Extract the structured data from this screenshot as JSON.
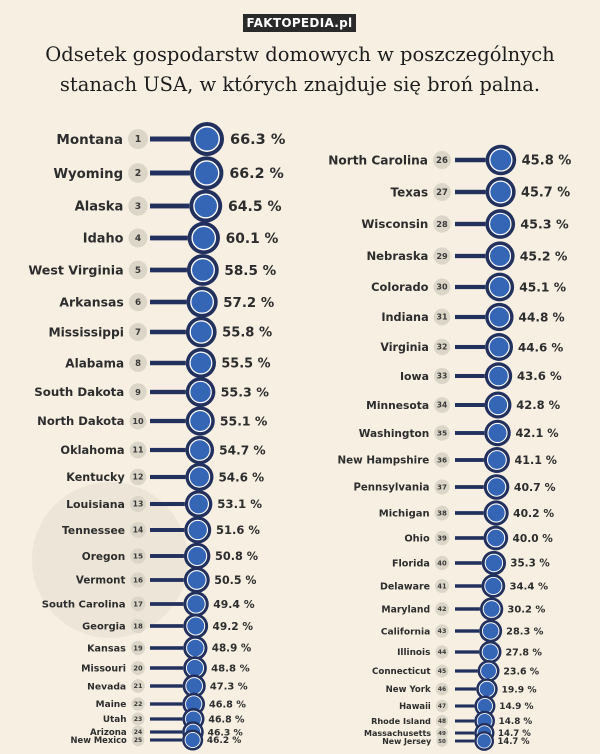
{
  "brand": "FAKTOPEDIA.pl",
  "chart_data": {
    "type": "bar",
    "title": "Odsetek gospodarstw domowych w poszczególnych stanach USA, w których znajduje się broń palna.",
    "title_lines": [
      "Odsetek gospodarstw domowych w poszczególnych",
      "stanach USA, w których znajduje się broń palna."
    ],
    "colors": {
      "bar": "#22305e",
      "rank_badge": "#dcd6c9",
      "background": "#f6efe2"
    },
    "items": [
      {
        "rank": 1,
        "state": "Montana",
        "value": 66.3,
        "label": "66.3 %"
      },
      {
        "rank": 2,
        "state": "Wyoming",
        "value": 66.2,
        "label": "66.2 %"
      },
      {
        "rank": 3,
        "state": "Alaska",
        "value": 64.5,
        "label": "64.5 %"
      },
      {
        "rank": 4,
        "state": "Idaho",
        "value": 60.1,
        "label": "60.1 %"
      },
      {
        "rank": 5,
        "state": "West Virginia",
        "value": 58.5,
        "label": "58.5 %"
      },
      {
        "rank": 6,
        "state": "Arkansas",
        "value": 57.2,
        "label": "57.2 %"
      },
      {
        "rank": 7,
        "state": "Mississippi",
        "value": 55.8,
        "label": "55.8 %"
      },
      {
        "rank": 8,
        "state": "Alabama",
        "value": 55.5,
        "label": "55.5 %"
      },
      {
        "rank": 9,
        "state": "South Dakota",
        "value": 55.3,
        "label": "55.3 %"
      },
      {
        "rank": 10,
        "state": "North Dakota",
        "value": 55.1,
        "label": "55.1 %"
      },
      {
        "rank": 11,
        "state": "Oklahoma",
        "value": 54.7,
        "label": "54.7 %"
      },
      {
        "rank": 12,
        "state": "Kentucky",
        "value": 54.6,
        "label": "54.6 %"
      },
      {
        "rank": 13,
        "state": "Louisiana",
        "value": 53.1,
        "label": "53.1 %"
      },
      {
        "rank": 14,
        "state": "Tennessee",
        "value": 51.6,
        "label": "51.6 %"
      },
      {
        "rank": 15,
        "state": "Oregon",
        "value": 50.8,
        "label": "50.8 %"
      },
      {
        "rank": 16,
        "state": "Vermont",
        "value": 50.5,
        "label": "50.5 %"
      },
      {
        "rank": 17,
        "state": "South Carolina",
        "value": 49.4,
        "label": "49.4 %"
      },
      {
        "rank": 18,
        "state": "Georgia",
        "value": 49.2,
        "label": "49.2 %"
      },
      {
        "rank": 19,
        "state": "Kansas",
        "value": 48.9,
        "label": "48.9 %"
      },
      {
        "rank": 20,
        "state": "Missouri",
        "value": 48.8,
        "label": "48.8 %"
      },
      {
        "rank": 21,
        "state": "Nevada",
        "value": 47.3,
        "label": "47.3 %"
      },
      {
        "rank": 22,
        "state": "Maine",
        "value": 46.8,
        "label": "46.8 %"
      },
      {
        "rank": 23,
        "state": "Utah",
        "value": 46.8,
        "label": "46.8 %"
      },
      {
        "rank": 24,
        "state": "Arizona",
        "value": 46.3,
        "label": "46.3 %"
      },
      {
        "rank": 25,
        "state": "New Mexico",
        "value": 46.2,
        "label": "46.2 %"
      },
      {
        "rank": 26,
        "state": "North Carolina",
        "value": 45.8,
        "label": "45.8 %"
      },
      {
        "rank": 27,
        "state": "Texas",
        "value": 45.7,
        "label": "45.7 %"
      },
      {
        "rank": 28,
        "state": "Wisconsin",
        "value": 45.3,
        "label": "45.3 %"
      },
      {
        "rank": 29,
        "state": "Nebraska",
        "value": 45.2,
        "label": "45.2 %"
      },
      {
        "rank": 30,
        "state": "Colorado",
        "value": 45.1,
        "label": "45.1 %"
      },
      {
        "rank": 31,
        "state": "Indiana",
        "value": 44.8,
        "label": "44.8 %"
      },
      {
        "rank": 32,
        "state": "Virginia",
        "value": 44.6,
        "label": "44.6 %"
      },
      {
        "rank": 33,
        "state": "Iowa",
        "value": 43.6,
        "label": "43.6 %"
      },
      {
        "rank": 34,
        "state": "Minnesota",
        "value": 42.8,
        "label": "42.8 %"
      },
      {
        "rank": 35,
        "state": "Washington",
        "value": 42.1,
        "label": "42.1 %"
      },
      {
        "rank": 36,
        "state": "New Hampshire",
        "value": 41.1,
        "label": "41.1 %"
      },
      {
        "rank": 37,
        "state": "Pennsylvania",
        "value": 40.7,
        "label": "40.7 %"
      },
      {
        "rank": 38,
        "state": "Michigan",
        "value": 40.2,
        "label": "40.2 %"
      },
      {
        "rank": 39,
        "state": "Ohio",
        "value": 40.0,
        "label": "40.0 %"
      },
      {
        "rank": 40,
        "state": "Florida",
        "value": 35.3,
        "label": "35.3 %"
      },
      {
        "rank": 41,
        "state": "Delaware",
        "value": 34.4,
        "label": "34.4 %"
      },
      {
        "rank": 42,
        "state": "Maryland",
        "value": 30.2,
        "label": "30.2 %"
      },
      {
        "rank": 43,
        "state": "California",
        "value": 28.3,
        "label": "28.3 %"
      },
      {
        "rank": 44,
        "state": "Illinois",
        "value": 27.8,
        "label": "27.8 %"
      },
      {
        "rank": 45,
        "state": "Connecticut",
        "value": 23.6,
        "label": "23.6 %"
      },
      {
        "rank": 46,
        "state": "New York",
        "value": 19.9,
        "label": "19.9 %"
      },
      {
        "rank": 47,
        "state": "Hawaii",
        "value": 14.9,
        "label": "14.9 %"
      },
      {
        "rank": 48,
        "state": "Rhode Island",
        "value": 14.8,
        "label": "14.8 %"
      },
      {
        "rank": 49,
        "state": "Massachusetts",
        "value": 14.7,
        "label": "14.7 %"
      },
      {
        "rank": 50,
        "state": "New Jersey",
        "value": 14.7,
        "label": "14.7 %"
      }
    ]
  }
}
